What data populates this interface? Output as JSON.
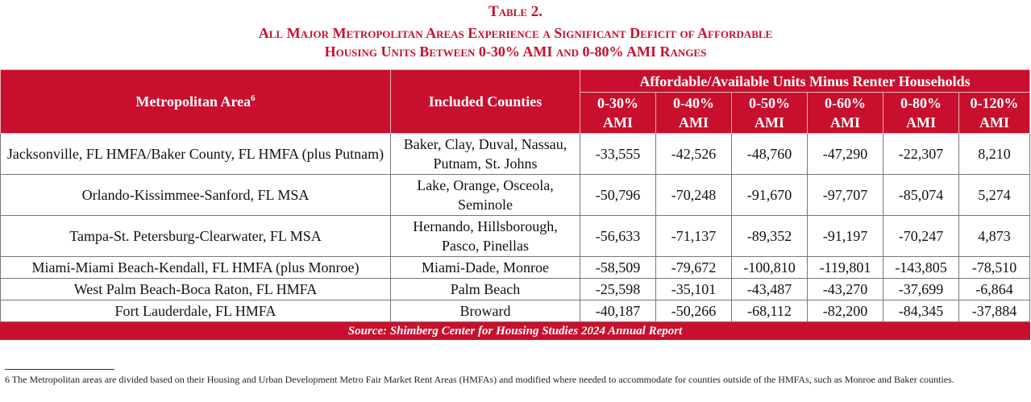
{
  "title": {
    "line1": "Table 2.",
    "line2": "All Major Metropolitan Areas Experience a Significant Deficit of Affordable",
    "line3": "Housing Units Between 0-30% AMI and 0-80% AMI Ranges"
  },
  "header": {
    "metro_label": "Metropolitan Area",
    "metro_sup": "6",
    "counties_label": "Included Counties",
    "group_label": "Affordable/Available Units Minus Renter Households",
    "ami_cols": [
      {
        "pct": "0-30%",
        "unit": "AMI"
      },
      {
        "pct": "0-40%",
        "unit": "AMI"
      },
      {
        "pct": "0-50%",
        "unit": "AMI"
      },
      {
        "pct": "0-60%",
        "unit": "AMI"
      },
      {
        "pct": "0-80%",
        "unit": "AMI"
      },
      {
        "pct": "0-120%",
        "unit": "AMI"
      }
    ]
  },
  "rows": [
    {
      "metro": "Jacksonville, FL HMFA/Baker County, FL HMFA (plus Putnam)",
      "counties": "Baker, Clay, Duval, Nassau, Putnam, St. Johns",
      "values": [
        "-33,555",
        "-42,526",
        "-48,760",
        "-47,290",
        "-22,307",
        "8,210"
      ]
    },
    {
      "metro": "Orlando-Kissimmee-Sanford, FL MSA",
      "counties": "Lake, Orange, Osceola, Seminole",
      "values": [
        "-50,796",
        "-70,248",
        "-91,670",
        "-97,707",
        "-85,074",
        "5,274"
      ]
    },
    {
      "metro": "Tampa-St. Petersburg-Clearwater, FL MSA",
      "counties": "Hernando, Hillsborough, Pasco, Pinellas",
      "values": [
        "-56,633",
        "-71,137",
        "-89,352",
        "-91,197",
        "-70,247",
        "4,873"
      ]
    },
    {
      "metro": "Miami-Miami Beach-Kendall, FL HMFA (plus Monroe)",
      "counties": "Miami-Dade, Monroe",
      "values": [
        "-58,509",
        "-79,672",
        "-100,810",
        "-119,801",
        "-143,805",
        "-78,510"
      ]
    },
    {
      "metro": "West Palm Beach-Boca Raton, FL HMFA",
      "counties": "Palm Beach",
      "values": [
        "-25,598",
        "-35,101",
        "-43,487",
        "-43,270",
        "-37,699",
        "-6,864"
      ]
    },
    {
      "metro": "Fort Lauderdale, FL HMFA",
      "counties": "Broward",
      "values": [
        "-40,187",
        "-50,266",
        "-68,112",
        "-82,200",
        "-84,345",
        "-37,884"
      ]
    }
  ],
  "source": "Source: Shimberg Center for Housing Studies 2024 Annual Report",
  "footnote": "6 The Metropolitan areas are divided based on their Housing and Urban Development Metro Fair Market Rent Areas (HMFAs) and modified where needed to accommodate for counties outside of the HMFAs, such as Monroe and Baker counties.",
  "colors": {
    "accent": "#c8102e"
  }
}
